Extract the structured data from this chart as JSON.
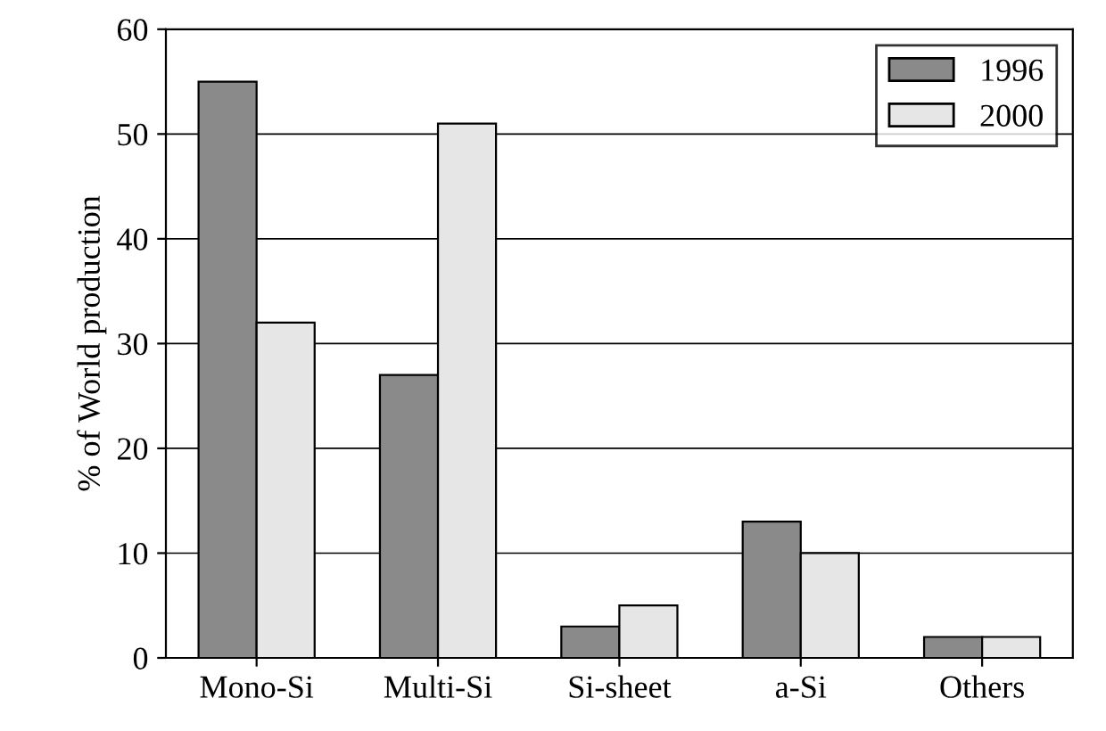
{
  "chart_data": {
    "type": "bar",
    "ylabel": "% of World production",
    "categories": [
      "Mono-Si",
      "Multi-Si",
      "Si-sheet",
      "a-Si",
      "Others"
    ],
    "series": [
      {
        "name": "1996",
        "color": "#8a8a8a",
        "values": [
          55,
          27,
          3,
          13,
          2
        ]
      },
      {
        "name": "2000",
        "color": "#e6e6e6",
        "values": [
          32,
          51,
          5,
          10,
          2
        ]
      }
    ],
    "ylim": [
      0,
      60
    ],
    "yticks": [
      0,
      10,
      20,
      30,
      40,
      50,
      60
    ],
    "grid": "y",
    "legend": "top right"
  }
}
